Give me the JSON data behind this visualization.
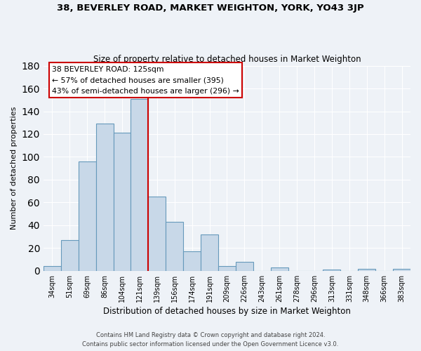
{
  "title": "38, BEVERLEY ROAD, MARKET WEIGHTON, YORK, YO43 3JP",
  "subtitle": "Size of property relative to detached houses in Market Weighton",
  "xlabel": "Distribution of detached houses by size in Market Weighton",
  "ylabel": "Number of detached properties",
  "bar_labels": [
    "34sqm",
    "51sqm",
    "69sqm",
    "86sqm",
    "104sqm",
    "121sqm",
    "139sqm",
    "156sqm",
    "174sqm",
    "191sqm",
    "209sqm",
    "226sqm",
    "243sqm",
    "261sqm",
    "278sqm",
    "296sqm",
    "313sqm",
    "331sqm",
    "348sqm",
    "366sqm",
    "383sqm"
  ],
  "bar_heights": [
    4,
    27,
    96,
    129,
    121,
    151,
    65,
    43,
    17,
    32,
    4,
    8,
    0,
    3,
    0,
    0,
    1,
    0,
    2,
    0,
    2
  ],
  "bar_color": "#c8d8e8",
  "bar_edge_color": "#6699bb",
  "vline_color": "#cc0000",
  "ylim": [
    0,
    180
  ],
  "yticks": [
    0,
    20,
    40,
    60,
    80,
    100,
    120,
    140,
    160,
    180
  ],
  "annotation_title": "38 BEVERLEY ROAD: 125sqm",
  "annotation_line1": "← 57% of detached houses are smaller (395)",
  "annotation_line2": "43% of semi-detached houses are larger (296) →",
  "annotation_box_color": "#ffffff",
  "annotation_box_edge": "#cc0000",
  "footer1": "Contains HM Land Registry data © Crown copyright and database right 2024.",
  "footer2": "Contains public sector information licensed under the Open Government Licence v3.0.",
  "background_color": "#eef2f7",
  "grid_color": "#ffffff"
}
